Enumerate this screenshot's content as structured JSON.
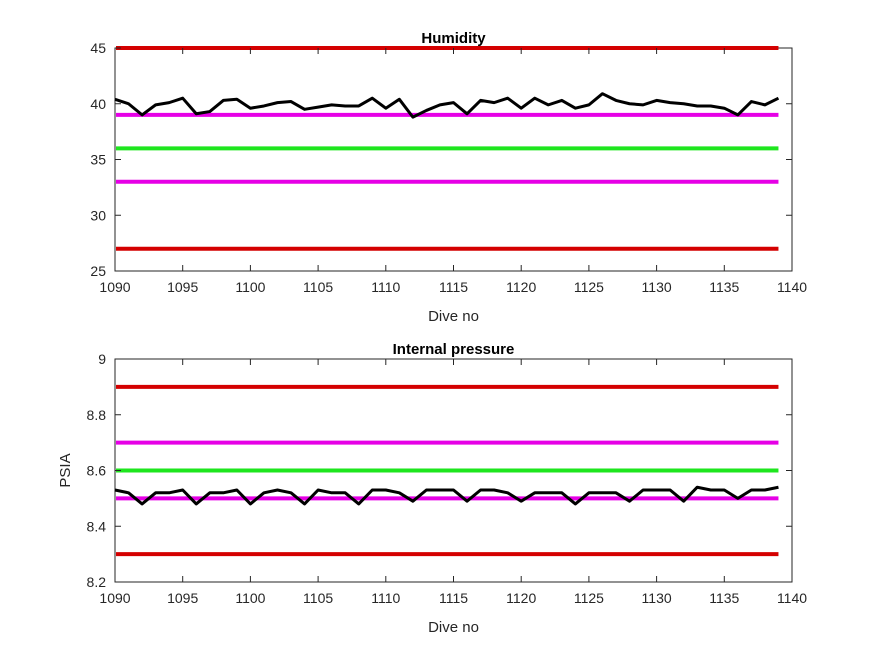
{
  "chart_data": [
    {
      "type": "line",
      "title": "Humidity",
      "xlabel": "Dive no",
      "ylabel": "",
      "xlim": [
        1090,
        1140
      ],
      "ylim": [
        25,
        45
      ],
      "xticks": [
        "1090",
        "1095",
        "1100",
        "1105",
        "1110",
        "1115",
        "1120",
        "1125",
        "1130",
        "1135",
        "1140"
      ],
      "yticks": [
        "25",
        "30",
        "35",
        "40",
        "45"
      ],
      "grid": false,
      "legend": "none",
      "threshold_lines": [
        {
          "y": 45,
          "color": "#d40000"
        },
        {
          "y": 39,
          "color": "#e600e6"
        },
        {
          "y": 36,
          "color": "#1ee61e"
        },
        {
          "y": 33,
          "color": "#e600e6"
        },
        {
          "y": 27,
          "color": "#d40000"
        }
      ],
      "series": [
        {
          "color": "#000000",
          "x": [
            1090,
            1091,
            1092,
            1093,
            1094,
            1095,
            1096,
            1097,
            1098,
            1099,
            1100,
            1101,
            1102,
            1103,
            1104,
            1105,
            1106,
            1107,
            1108,
            1109,
            1110,
            1111,
            1112,
            1113,
            1114,
            1115,
            1116,
            1117,
            1118,
            1119,
            1120,
            1121,
            1122,
            1123,
            1124,
            1125,
            1126,
            1127,
            1128,
            1129,
            1130,
            1131,
            1132,
            1133,
            1134,
            1135,
            1136,
            1137,
            1138,
            1139
          ],
          "values": [
            40.4,
            40.0,
            39.0,
            39.9,
            40.1,
            40.5,
            39.1,
            39.3,
            40.3,
            40.4,
            39.6,
            39.8,
            40.1,
            40.2,
            39.5,
            39.7,
            39.9,
            39.8,
            39.8,
            40.5,
            39.6,
            40.4,
            38.8,
            39.4,
            39.9,
            40.1,
            39.1,
            40.3,
            40.1,
            40.5,
            39.6,
            40.5,
            39.9,
            40.3,
            39.6,
            39.9,
            40.9,
            40.3,
            40.0,
            39.9,
            40.3,
            40.1,
            40.0,
            39.8,
            39.8,
            39.6,
            39.0,
            40.2,
            39.9,
            40.5
          ]
        }
      ]
    },
    {
      "type": "line",
      "title": "Internal pressure",
      "xlabel": "Dive no",
      "ylabel": "PSIA",
      "xlim": [
        1090,
        1140
      ],
      "ylim": [
        8.2,
        9.0
      ],
      "xticks": [
        "1090",
        "1095",
        "1100",
        "1105",
        "1110",
        "1115",
        "1120",
        "1125",
        "1130",
        "1135",
        "1140"
      ],
      "yticks": [
        "8.2",
        "8.4",
        "8.6",
        "8.8",
        "9"
      ],
      "grid": false,
      "legend": "none",
      "threshold_lines": [
        {
          "y": 8.9,
          "color": "#d40000"
        },
        {
          "y": 8.7,
          "color": "#e600e6"
        },
        {
          "y": 8.6,
          "color": "#1ee61e"
        },
        {
          "y": 8.5,
          "color": "#e600e6"
        },
        {
          "y": 8.3,
          "color": "#d40000"
        }
      ],
      "series": [
        {
          "color": "#000000",
          "x": [
            1090,
            1091,
            1092,
            1093,
            1094,
            1095,
            1096,
            1097,
            1098,
            1099,
            1100,
            1101,
            1102,
            1103,
            1104,
            1105,
            1106,
            1107,
            1108,
            1109,
            1110,
            1111,
            1112,
            1113,
            1114,
            1115,
            1116,
            1117,
            1118,
            1119,
            1120,
            1121,
            1122,
            1123,
            1124,
            1125,
            1126,
            1127,
            1128,
            1129,
            1130,
            1131,
            1132,
            1133,
            1134,
            1135,
            1136,
            1137,
            1138,
            1139
          ],
          "values": [
            8.53,
            8.52,
            8.48,
            8.52,
            8.52,
            8.53,
            8.48,
            8.52,
            8.52,
            8.53,
            8.48,
            8.52,
            8.53,
            8.52,
            8.48,
            8.53,
            8.52,
            8.52,
            8.48,
            8.53,
            8.53,
            8.52,
            8.49,
            8.53,
            8.53,
            8.53,
            8.49,
            8.53,
            8.53,
            8.52,
            8.49,
            8.52,
            8.52,
            8.52,
            8.48,
            8.52,
            8.52,
            8.52,
            8.49,
            8.53,
            8.53,
            8.53,
            8.49,
            8.54,
            8.53,
            8.53,
            8.5,
            8.53,
            8.53,
            8.54
          ]
        }
      ]
    }
  ]
}
